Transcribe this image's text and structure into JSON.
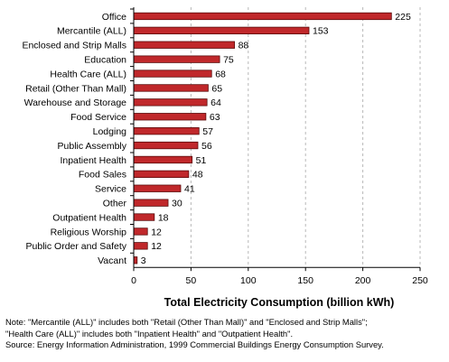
{
  "chart_data": {
    "type": "bar",
    "orientation": "horizontal",
    "categories": [
      "Office",
      "Mercantile (ALL)",
      "Enclosed and Strip Malls",
      "Education",
      "Health Care (ALL)",
      "Retail (Other Than Mall)",
      "Warehouse and Storage",
      "Food Service",
      "Lodging",
      "Public Assembly",
      "Inpatient Health",
      "Food Sales",
      "Service",
      "Other",
      "Outpatient Health",
      "Religious Worship",
      "Public Order and Safety",
      "Vacant"
    ],
    "values": [
      225,
      153,
      88,
      75,
      68,
      65,
      64,
      63,
      57,
      56,
      51,
      48,
      41,
      30,
      18,
      12,
      12,
      3
    ],
    "xlabel": "Total Electricity Consumption (billion kWh)",
    "ylabel": "",
    "xlim": [
      0,
      250
    ],
    "xticks": [
      0,
      50,
      100,
      150,
      200,
      250
    ],
    "grid": "vertical dashed",
    "bar_color": "#c0282b",
    "bar_border_color": "#5a0a0a",
    "grid_color": "#b8b8b8"
  },
  "notes": {
    "line1": "Note: \"Mercantile (ALL)\" includes both \"Retail (Other Than Mall)\" and \"Enclosed and Strip Malls\";",
    "line2": "\"Health Care (ALL)\" includes both \"Inpatient Health\" and \"Outpatient Health\".",
    "line3": "Source: Energy Information Administration, 1999 Commercial Buildings Energy Consumption Survey."
  }
}
